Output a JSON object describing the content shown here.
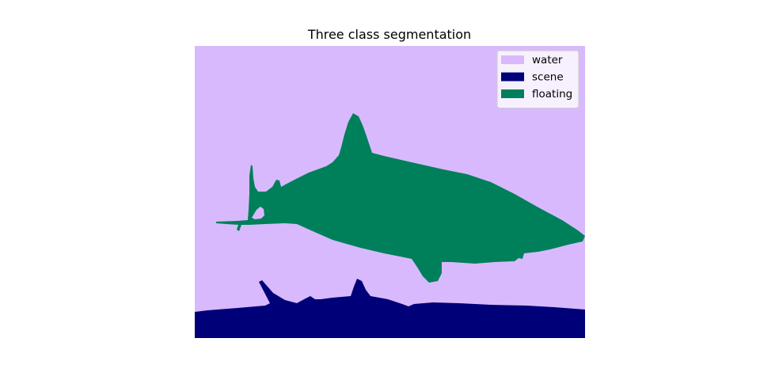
{
  "chart_data": {
    "type": "heatmap",
    "title": "Three class segmentation",
    "xlabel": "",
    "ylabel": "",
    "axes_visible": false,
    "grid": false,
    "legend_position": "top-right",
    "classes": [
      {
        "name": "water",
        "color": "#d8b9fd"
      },
      {
        "name": "scene",
        "color": "#000078"
      },
      {
        "name": "floating",
        "color": "#00805a"
      }
    ],
    "background_class": "water"
  }
}
